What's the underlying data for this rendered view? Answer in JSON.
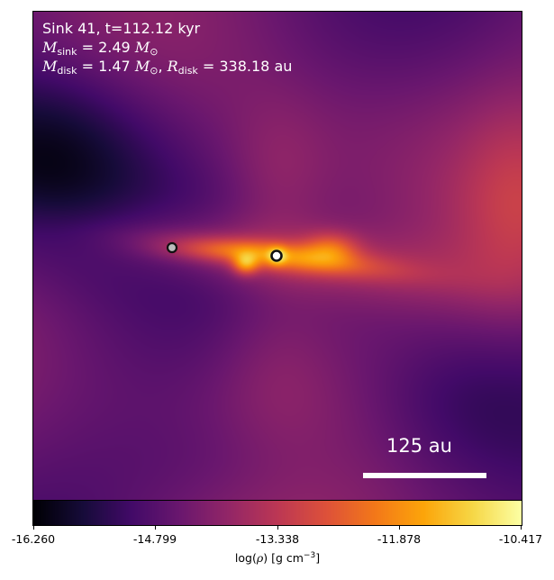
{
  "chart_data": {
    "type": "heatmap",
    "title_line1": "Sink 41, t=112.12 kyr",
    "title_line2": "M_sink = 2.49 M_sun",
    "title_line3": "M_disk = 1.47 M_sun, R_disk = 338.18 au",
    "sink_id": 41,
    "time_kyr": 112.12,
    "m_sink_msun": 2.49,
    "m_disk_msun": 1.47,
    "r_disk_au": 338.18,
    "colormap": "inferno",
    "color_scale": "log density",
    "vmin": -16.26,
    "vmax": -10.417,
    "colorbar_ticks": [
      "-16.260",
      "-14.799",
      "-13.338",
      "-11.878",
      "-10.417"
    ],
    "colorbar_label": "log(ρ) [g cm⁻³]",
    "scale_bar_label": "125 au",
    "scale_bar_au": 125,
    "sinks": [
      {
        "name": "primary sink",
        "role": "center"
      },
      {
        "name": "secondary sink",
        "role": "companion"
      }
    ]
  }
}
